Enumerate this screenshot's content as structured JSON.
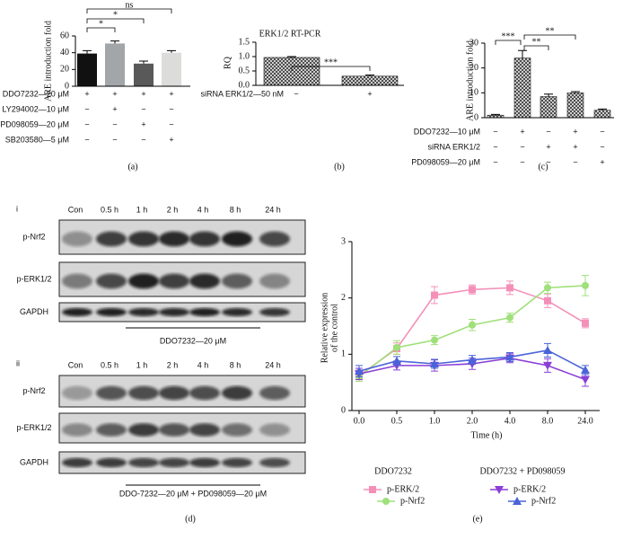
{
  "chart_data": [
    {
      "type": "bar",
      "label": "(a)",
      "ylabel": "ARE introduction fold",
      "values": [
        39,
        51,
        27,
        40
      ],
      "errors": [
        3.5,
        3,
        3,
        2.5
      ],
      "colors": [
        "#111111",
        "#a3a6a9",
        "#595959",
        "#dcdddb"
      ],
      "ylim": [
        0,
        60
      ],
      "yticks": [
        0,
        20,
        40,
        60
      ],
      "conditions": [
        {
          "label": "DDO7232—20 μM",
          "signs": [
            "+",
            "+",
            "+",
            "+"
          ]
        },
        {
          "label": "LY294002—10 μM",
          "signs": [
            "−",
            "+",
            "−",
            "−"
          ]
        },
        {
          "label": "PD098059—20 μM",
          "signs": [
            "−",
            "−",
            "+",
            "−"
          ]
        },
        {
          "label": "SB203580—5 μM",
          "signs": [
            "−",
            "−",
            "−",
            "+"
          ]
        }
      ],
      "annotations": [
        "ns",
        "*",
        "*"
      ]
    },
    {
      "type": "bar",
      "label": "(b)",
      "title": "ERK1/2 RT-PCR",
      "ylabel": "RQ",
      "values": [
        0.97,
        0.32
      ],
      "errors": [
        0.03,
        0.04
      ],
      "color": "#333333",
      "hatched": true,
      "ylim": [
        0,
        1.5
      ],
      "yticks": [
        {
          "value": 0,
          "label": "0.0"
        },
        0.5,
        {
          "value": 1,
          "label": "1.0"
        },
        1.5
      ],
      "conditions": [
        {
          "label": "siRNA ERK1/2—50 nM",
          "signs": [
            "−",
            "+"
          ]
        }
      ],
      "annotations": [
        "***"
      ]
    },
    {
      "type": "bar",
      "label": "(c)",
      "ylabel": "ARE introduction fold",
      "values": [
        1,
        24,
        8.5,
        10,
        3
      ],
      "errors": [
        0.3,
        3,
        1,
        0.5,
        0.5
      ],
      "color": "#333333",
      "hatched": true,
      "ylim": [
        0,
        30
      ],
      "yticks": [
        0,
        10,
        20,
        30
      ],
      "conditions": [
        {
          "label": "DDO7232—10 μM",
          "signs": [
            "−",
            "+",
            "−",
            "+",
            "−"
          ]
        },
        {
          "label": "siRNA ERK1/2",
          "signs": [
            "−",
            "−",
            "+",
            "+",
            "−"
          ]
        },
        {
          "label": "PD098059—20 μM",
          "signs": [
            "−",
            "−",
            "−",
            "−",
            "+"
          ]
        }
      ],
      "annotations": [
        "***",
        "**",
        "**"
      ]
    },
    {
      "type": "line",
      "label": "(e)",
      "xlabel": "Time (h)",
      "ylabel": [
        "Relative expression",
        "of the control"
      ],
      "categories": [
        "0.0",
        "0.5",
        "1.0",
        "2.0",
        "4.0",
        "8.0",
        "24.0"
      ],
      "ylim": [
        0,
        3
      ],
      "yticks": [
        0,
        1,
        2,
        3
      ],
      "groups": [
        {
          "name": "DDO7232",
          "series": [
            {
              "name": "p-ERK/2",
              "color": "#f490b8",
              "marker": "square",
              "values": [
                0.62,
                1.1,
                2.05,
                2.15,
                2.18,
                1.95,
                1.55
              ],
              "errors": [
                0.1,
                0.1,
                0.15,
                0.08,
                0.12,
                0.12,
                0.08
              ]
            },
            {
              "name": "p-Nrf2",
              "color": "#9fe07a",
              "marker": "circle",
              "values": [
                0.6,
                1.12,
                1.25,
                1.52,
                1.65,
                2.18,
                2.22
              ],
              "errors": [
                0.08,
                0.12,
                0.08,
                0.1,
                0.08,
                0.1,
                0.18
              ]
            }
          ]
        },
        {
          "name": "DDO7232 + PD098059",
          "series": [
            {
              "name": "p-ERK/2",
              "color": "#8a3fd6",
              "marker": "triangle-down",
              "values": [
                0.65,
                0.8,
                0.8,
                0.83,
                0.93,
                0.8,
                0.55
              ],
              "errors": [
                0.1,
                0.08,
                0.1,
                0.1,
                0.08,
                0.12,
                0.12
              ]
            },
            {
              "name": "p-Nrf2",
              "color": "#4a63d9",
              "marker": "triangle-up",
              "values": [
                0.7,
                0.88,
                0.83,
                0.9,
                0.95,
                1.07,
                0.72
              ],
              "errors": [
                0.1,
                0.08,
                0.08,
                0.08,
                0.08,
                0.12,
                0.08
              ]
            }
          ]
        }
      ]
    }
  ],
  "panel_d": {
    "label": "(d)",
    "blots": [
      {
        "numeral": "i",
        "lanes": [
          "Con",
          "0.5 h",
          "1 h",
          "2 h",
          "4 h",
          "8 h",
          "24 h"
        ],
        "rows": [
          "p-Nrf2",
          "p-ERK1/2",
          "GAPDH"
        ],
        "caption": "DDO7232—20 μM"
      },
      {
        "numeral": "ii",
        "lanes": [
          "Con",
          "0.5 h",
          "1 h",
          "2 h",
          "4 h",
          "8 h",
          "24 h"
        ],
        "rows": [
          "p-Nrf2",
          "p-ERK1/2",
          "GAPDH"
        ],
        "caption": "DDO-7232—20 μM + PD098059—20 μM"
      }
    ]
  }
}
